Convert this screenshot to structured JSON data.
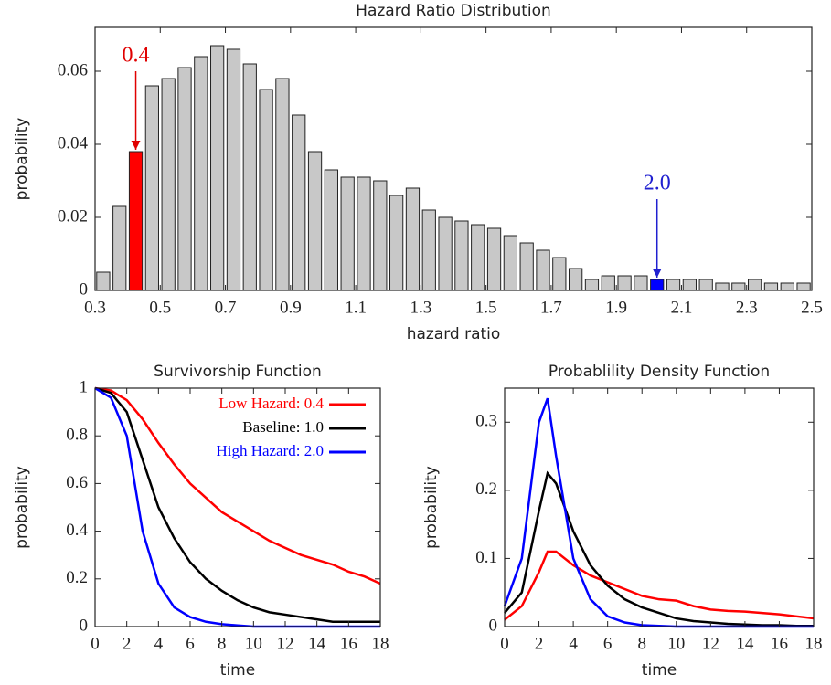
{
  "chart_data": [
    {
      "type": "histogram",
      "title": "Hazard Ratio Distribution",
      "xlabel": "hazard ratio",
      "ylabel": "probability",
      "bins": [
        0.3,
        0.35,
        0.4,
        0.45,
        0.5,
        0.55,
        0.6,
        0.65,
        0.7,
        0.75,
        0.8,
        0.85,
        0.9,
        0.95,
        1.0,
        1.05,
        1.1,
        1.15,
        1.2,
        1.25,
        1.3,
        1.35,
        1.4,
        1.45,
        1.5,
        1.55,
        1.6,
        1.65,
        1.7,
        1.75,
        1.8,
        1.85,
        1.9,
        1.95,
        2.0,
        2.05,
        2.1,
        2.15,
        2.2,
        2.25,
        2.3,
        2.35,
        2.4,
        2.45,
        2.5
      ],
      "counts": [
        0.005,
        0.023,
        0.038,
        0.056,
        0.058,
        0.061,
        0.064,
        0.067,
        0.066,
        0.062,
        0.055,
        0.058,
        0.048,
        0.038,
        0.033,
        0.031,
        0.031,
        0.03,
        0.026,
        0.028,
        0.022,
        0.02,
        0.019,
        0.018,
        0.017,
        0.015,
        0.013,
        0.011,
        0.009,
        0.006,
        0.003,
        0.004,
        0.004,
        0.004,
        0.003,
        0.003,
        0.003,
        0.003,
        0.002,
        0.002,
        0.003,
        0.002,
        0.002,
        0.002
      ],
      "colors": [
        "#c8c8c8",
        "#c8c8c8",
        "#ff0000",
        "#c8c8c8",
        "#c8c8c8",
        "#c8c8c8",
        "#c8c8c8",
        "#c8c8c8",
        "#c8c8c8",
        "#c8c8c8",
        "#c8c8c8",
        "#c8c8c8",
        "#c8c8c8",
        "#c8c8c8",
        "#c8c8c8",
        "#c8c8c8",
        "#c8c8c8",
        "#c8c8c8",
        "#c8c8c8",
        "#c8c8c8",
        "#c8c8c8",
        "#c8c8c8",
        "#c8c8c8",
        "#c8c8c8",
        "#c8c8c8",
        "#c8c8c8",
        "#c8c8c8",
        "#c8c8c8",
        "#c8c8c8",
        "#c8c8c8",
        "#c8c8c8",
        "#c8c8c8",
        "#c8c8c8",
        "#c8c8c8",
        "#0000ff",
        "#c8c8c8",
        "#c8c8c8",
        "#c8c8c8",
        "#c8c8c8",
        "#c8c8c8",
        "#c8c8c8",
        "#c8c8c8",
        "#c8c8c8",
        "#c8c8c8"
      ],
      "annotations": [
        {
          "text": "0.4",
          "x": 0.425,
          "y": 0.064,
          "color": "#e00000"
        },
        {
          "text": "2.0",
          "x": 2.025,
          "y": 0.029,
          "color": "#2020d0"
        }
      ],
      "xlim": [
        0.3,
        2.5
      ],
      "xticks": [
        0.3,
        0.5,
        0.7,
        0.9,
        1.1,
        1.3,
        1.5,
        1.7,
        1.9,
        2.1,
        2.3,
        2.5
      ],
      "ylim": [
        0,
        0.072
      ],
      "yticks": [
        0,
        0.02,
        0.04,
        0.06
      ]
    },
    {
      "type": "line",
      "title": "Survivorship Function",
      "xlabel": "time",
      "ylabel": "probability",
      "legend": "upper right",
      "x": [
        0,
        1,
        2,
        3,
        4,
        5,
        6,
        7,
        8,
        9,
        10,
        11,
        12,
        13,
        14,
        15,
        16,
        17,
        18
      ],
      "series": [
        {
          "name": "Low Hazard: 0.4",
          "color": "#ff0000",
          "values": [
            1,
            0.99,
            0.95,
            0.87,
            0.77,
            0.68,
            0.6,
            0.54,
            0.48,
            0.44,
            0.4,
            0.36,
            0.33,
            0.3,
            0.28,
            0.26,
            0.23,
            0.21,
            0.18
          ]
        },
        {
          "name": "Baseline: 1.0",
          "color": "#000000",
          "values": [
            1,
            0.98,
            0.9,
            0.7,
            0.5,
            0.37,
            0.27,
            0.2,
            0.15,
            0.11,
            0.08,
            0.06,
            0.05,
            0.04,
            0.03,
            0.02,
            0.02,
            0.02,
            0.02
          ]
        },
        {
          "name": "High Hazard: 2.0",
          "color": "#0000ff",
          "values": [
            1,
            0.96,
            0.8,
            0.4,
            0.18,
            0.08,
            0.04,
            0.02,
            0.01,
            0.005,
            0,
            0,
            0,
            0,
            0,
            0,
            0,
            0,
            0
          ]
        }
      ],
      "xlim": [
        0,
        18
      ],
      "xticks": [
        0,
        2,
        4,
        6,
        8,
        10,
        12,
        14,
        16,
        18
      ],
      "ylim": [
        0,
        1
      ],
      "yticks": [
        0,
        0.2,
        0.4,
        0.6,
        0.8,
        1
      ]
    },
    {
      "type": "line",
      "title": "Probablility Density Function",
      "xlabel": "time",
      "ylabel": "probability",
      "x": [
        0,
        1,
        2,
        2.5,
        3,
        4,
        5,
        6,
        7,
        8,
        9,
        10,
        11,
        12,
        13,
        14,
        15,
        16,
        17,
        18
      ],
      "series": [
        {
          "name": "Low Hazard: 0.4",
          "color": "#ff0000",
          "values": [
            0.01,
            0.03,
            0.08,
            0.11,
            0.11,
            0.09,
            0.075,
            0.065,
            0.055,
            0.045,
            0.04,
            0.038,
            0.03,
            0.025,
            0.023,
            0.022,
            0.02,
            0.018,
            0.015,
            0.012
          ]
        },
        {
          "name": "Baseline: 1.0",
          "color": "#000000",
          "values": [
            0.02,
            0.05,
            0.17,
            0.225,
            0.21,
            0.14,
            0.09,
            0.06,
            0.04,
            0.028,
            0.02,
            0.012,
            0.008,
            0.006,
            0.004,
            0.003,
            0.002,
            0.002,
            0.001,
            0.001
          ]
        },
        {
          "name": "High Hazard: 2.0",
          "color": "#0000ff",
          "values": [
            0.03,
            0.1,
            0.3,
            0.335,
            0.25,
            0.1,
            0.04,
            0.015,
            0.006,
            0.002,
            0.001,
            0,
            0,
            0,
            0,
            0,
            0,
            0,
            0,
            0
          ]
        }
      ],
      "xlim": [
        0,
        18
      ],
      "xticks": [
        0,
        2,
        4,
        6,
        8,
        10,
        12,
        14,
        16,
        18
      ],
      "ylim": [
        0,
        0.35
      ],
      "yticks": [
        0,
        0.1,
        0.2,
        0.3
      ]
    }
  ]
}
